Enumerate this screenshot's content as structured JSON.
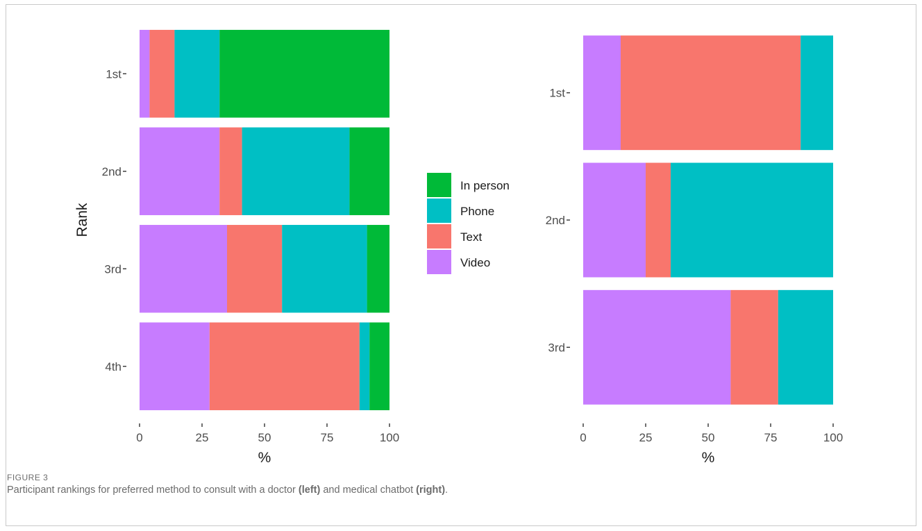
{
  "figure": {
    "label": "FIGURE 3",
    "caption_parts": [
      "Participant rankings for preferred method to consult with a doctor ",
      "(left)",
      " and medical chatbot ",
      "(right)",
      "."
    ]
  },
  "legend": {
    "entries": [
      {
        "name": "In person",
        "color": "#00ba38"
      },
      {
        "name": "Phone",
        "color": "#00bfc4"
      },
      {
        "name": "Text",
        "color": "#f8766d"
      },
      {
        "name": "Video",
        "color": "#c77cff"
      }
    ]
  },
  "chart_data": [
    {
      "type": "bar",
      "orientation": "horizontal",
      "stacked": true,
      "title": "",
      "xlabel": "%",
      "ylabel": "Rank",
      "xlim": [
        0,
        100
      ],
      "xticks": [
        "0",
        "25",
        "50",
        "75",
        "100"
      ],
      "categories": [
        "1st",
        "2nd",
        "3rd",
        "4th"
      ],
      "series": [
        {
          "name": "Video",
          "color": "#c77cff",
          "values": [
            4,
            32,
            35,
            28
          ]
        },
        {
          "name": "Text",
          "color": "#f8766d",
          "values": [
            10,
            9,
            22,
            60
          ]
        },
        {
          "name": "Phone",
          "color": "#00bfc4",
          "values": [
            18,
            43,
            34,
            4
          ]
        },
        {
          "name": "In person",
          "color": "#00ba38",
          "values": [
            68,
            16,
            9,
            8
          ]
        }
      ],
      "grid": false,
      "legend": "right"
    },
    {
      "type": "bar",
      "orientation": "horizontal",
      "stacked": true,
      "title": "",
      "xlabel": "%",
      "ylabel": "",
      "xlim": [
        0,
        100
      ],
      "xticks": [
        "0",
        "25",
        "50",
        "75",
        "100"
      ],
      "categories": [
        "1st",
        "2nd",
        "3rd"
      ],
      "series": [
        {
          "name": "Video",
          "color": "#c77cff",
          "values": [
            15,
            25,
            59
          ]
        },
        {
          "name": "Text",
          "color": "#f8766d",
          "values": [
            72,
            10,
            19
          ]
        },
        {
          "name": "Phone",
          "color": "#00bfc4",
          "values": [
            13,
            65,
            22
          ]
        }
      ],
      "grid": false
    }
  ]
}
